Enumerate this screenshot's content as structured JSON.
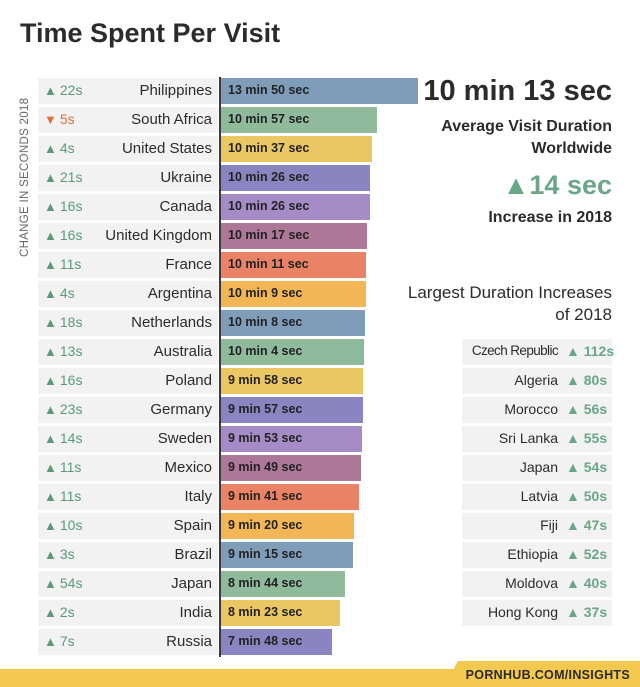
{
  "title": "Time Spent Per Visit",
  "footer": "PORNHUB.COM/INSIGHTS",
  "summary": {
    "avg_duration": "10 min 13 sec",
    "avg_label": "Average Visit Duration Worldwide",
    "increase_value": "14 sec",
    "increase_label": "Increase in 2018",
    "largest_title": "Largest Duration Increases of 2018"
  },
  "largest_increases": [
    {
      "country": "Czech Republic",
      "change": "112s"
    },
    {
      "country": "Algeria",
      "change": "80s"
    },
    {
      "country": "Morocco",
      "change": "56s"
    },
    {
      "country": "Sri Lanka",
      "change": "55s"
    },
    {
      "country": "Japan",
      "change": "54s"
    },
    {
      "country": "Latvia",
      "change": "50s"
    },
    {
      "country": "Fiji",
      "change": "47s"
    },
    {
      "country": "Ethiopia",
      "change": "52s"
    },
    {
      "country": "Moldova",
      "change": "40s"
    },
    {
      "country": "Hong Kong",
      "change": "37s"
    }
  ],
  "colors": {
    "up": "#6aa788",
    "down": "#e0713f",
    "bar_palette": [
      "#7f9cb8",
      "#8fba9c",
      "#ebc764",
      "#8a85c1",
      "#a58cc6",
      "#ad7798",
      "#ea8265",
      "#f2b657"
    ]
  },
  "chart_data": {
    "type": "bar",
    "orientation": "horizontal",
    "title": "Time Spent Per Visit",
    "ylabel": "CHANGE IN SECONDS 2018",
    "xlabel": "",
    "xlim": [
      0,
      830
    ],
    "rows": [
      {
        "country": "Philippines",
        "duration": "13 min 50 sec",
        "seconds": 830,
        "change": "22s",
        "direction": "up",
        "color": "#7f9cb8"
      },
      {
        "country": "South Africa",
        "duration": "10 min 57 sec",
        "seconds": 657,
        "change": "5s",
        "direction": "down",
        "color": "#8fba9c"
      },
      {
        "country": "United States",
        "duration": "10 min 37 sec",
        "seconds": 637,
        "change": "4s",
        "direction": "up",
        "color": "#ebc764"
      },
      {
        "country": "Ukraine",
        "duration": "10 min 26 sec",
        "seconds": 626,
        "change": "21s",
        "direction": "up",
        "color": "#8a85c1"
      },
      {
        "country": "Canada",
        "duration": "10 min 26 sec",
        "seconds": 626,
        "change": "16s",
        "direction": "up",
        "color": "#a58cc6"
      },
      {
        "country": "United Kingdom",
        "duration": "10 min 17 sec",
        "seconds": 617,
        "change": "16s",
        "direction": "up",
        "color": "#ad7798"
      },
      {
        "country": "France",
        "duration": "10 min 11 sec",
        "seconds": 611,
        "change": "11s",
        "direction": "up",
        "color": "#ea8265"
      },
      {
        "country": "Argentina",
        "duration": "10 min 9 sec",
        "seconds": 609,
        "change": "4s",
        "direction": "up",
        "color": "#f2b657"
      },
      {
        "country": "Netherlands",
        "duration": "10 min 8 sec",
        "seconds": 608,
        "change": "18s",
        "direction": "up",
        "color": "#7f9cb8"
      },
      {
        "country": "Australia",
        "duration": "10 min 4 sec",
        "seconds": 604,
        "change": "13s",
        "direction": "up",
        "color": "#8fba9c"
      },
      {
        "country": "Poland",
        "duration": "9 min 58 sec",
        "seconds": 598,
        "change": "16s",
        "direction": "up",
        "color": "#ebc764"
      },
      {
        "country": "Germany",
        "duration": "9 min 57 sec",
        "seconds": 597,
        "change": "23s",
        "direction": "up",
        "color": "#8a85c1"
      },
      {
        "country": "Sweden",
        "duration": "9 min 53 sec",
        "seconds": 593,
        "change": "14s",
        "direction": "up",
        "color": "#a58cc6"
      },
      {
        "country": "Mexico",
        "duration": "9 min 49 sec",
        "seconds": 589,
        "change": "11s",
        "direction": "up",
        "color": "#ad7798"
      },
      {
        "country": "Italy",
        "duration": "9 min 41 sec",
        "seconds": 581,
        "change": "11s",
        "direction": "up",
        "color": "#ea8265"
      },
      {
        "country": "Spain",
        "duration": "9 min 20 sec",
        "seconds": 560,
        "change": "10s",
        "direction": "up",
        "color": "#f2b657"
      },
      {
        "country": "Brazil",
        "duration": "9 min 15 sec",
        "seconds": 555,
        "change": "3s",
        "direction": "up",
        "color": "#7f9cb8"
      },
      {
        "country": "Japan",
        "duration": "8 min 44 sec",
        "seconds": 524,
        "change": "54s",
        "direction": "up",
        "color": "#8fba9c"
      },
      {
        "country": "India",
        "duration": "8 min 23 sec",
        "seconds": 503,
        "change": "2s",
        "direction": "up",
        "color": "#ebc764"
      },
      {
        "country": "Russia",
        "duration": "7 min 48 sec",
        "seconds": 468,
        "change": "7s",
        "direction": "up",
        "color": "#8a85c1"
      }
    ]
  }
}
